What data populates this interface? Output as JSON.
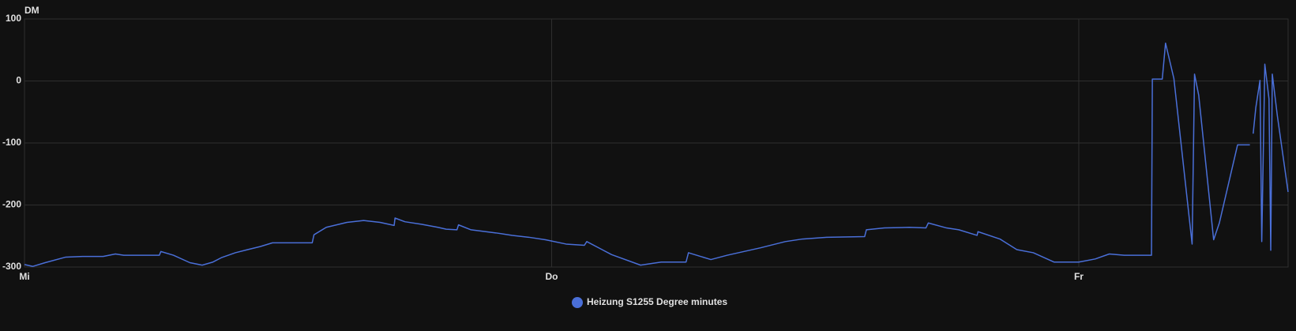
{
  "chart_data": {
    "type": "line",
    "y_label": "DM",
    "x": [
      0,
      0.38,
      0.94,
      1.88,
      2.64,
      3.58,
      4.14,
      4.52,
      6.14,
      6.21,
      6.78,
      7.53,
      8.09,
      8.58,
      8.96,
      9.6,
      10.16,
      10.73,
      11.29,
      13.1,
      13.18,
      13.74,
      14.68,
      15.44,
      16.19,
      16.83,
      16.87,
      17.32,
      18.07,
      18.82,
      19.2,
      19.69,
      19.76,
      20.33,
      21.46,
      22.21,
      22.96,
      23.72,
      24.66,
      25.49,
      25.6,
      26.73,
      28.05,
      28.99,
      30.12,
      30.23,
      31.25,
      32,
      33.51,
      34.64,
      35.39,
      36.52,
      38.25,
      38.33,
      39.15,
      40.28,
      41.04,
      41.15,
      41.98,
      42.54,
      43.37,
      43.41,
      44.42,
      45.18,
      45.93,
      46.87,
      48,
      48.75,
      49.39,
      50.07,
      51.31,
      51.35,
      51.8,
      51.95,
      52.33,
      53.16,
      53.27,
      53.46,
      54.14,
      54.4,
      55.23,
      55.79,
      55.86,
      55.94,
      56.06,
      56.25,
      56.33,
      56.47,
      56.66,
      56.74,
      56.81,
      57.04,
      57.53
    ],
    "series": [
      {
        "name": "Heizung S1255 Degree minutes",
        "color": "#4a6fd8",
        "values": [
          -296,
          -299,
          -293,
          -284,
          -283,
          -283,
          -279,
          -281,
          -281,
          -275,
          -281,
          -293,
          -297,
          -292,
          -285,
          -277,
          -272,
          -267,
          -261,
          -261,
          -248,
          -236,
          -228,
          -225,
          -228,
          -233,
          -221,
          -227,
          -231,
          -236,
          -239,
          -240,
          -232,
          -240,
          -245,
          -249,
          -252,
          -256,
          -263,
          -265,
          -259,
          -280,
          -297,
          -292,
          -292,
          -277,
          -288,
          -281,
          -269,
          -259,
          -255,
          -252,
          -251,
          -240,
          -237,
          -236,
          -237,
          -229,
          -237,
          -240,
          -249,
          -243,
          -255,
          -272,
          -277,
          -292,
          -292,
          -287,
          -279,
          -281,
          -281,
          3,
          3,
          61,
          4,
          -263,
          11,
          -23,
          -256,
          -229,
          -103,
          -103,
          null,
          -85,
          -43,
          1,
          -259,
          27,
          -29,
          -273,
          11,
          -56,
          -179
        ]
      }
    ],
    "xlim": [
      0,
      57.53
    ],
    "xticks": [
      {
        "value": 0,
        "label": "Mi"
      },
      {
        "value": 24,
        "label": "Do"
      },
      {
        "value": 48,
        "label": "Fr"
      }
    ],
    "ylim": [
      -300,
      100
    ],
    "yticks": [
      -300,
      -200,
      -100,
      0,
      100
    ],
    "grid": true,
    "legend": "bottom"
  }
}
